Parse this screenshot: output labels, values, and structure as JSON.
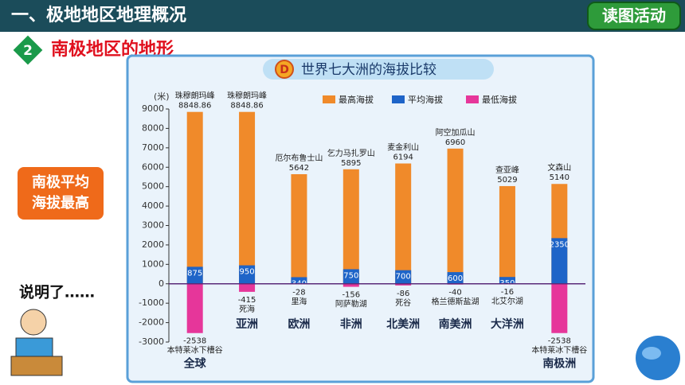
{
  "header": {
    "title": "一、极地地区地理概况",
    "button": "读图活动"
  },
  "section": {
    "number": "2",
    "title": "南极地区的地形"
  },
  "note": [
    "南极平均",
    "海拔最高"
  ],
  "caption": "说明了……",
  "chart_data": {
    "type": "bar",
    "badge": "D",
    "title": "世界七大洲的海拔比较",
    "y_label": "(米)",
    "categories": [
      "全球",
      "亚洲",
      "欧洲",
      "非洲",
      "北美洲",
      "南美洲",
      "大洋洲",
      "南极洲"
    ],
    "peak_names": [
      "珠穆朗玛峰",
      "珠穆朗玛峰",
      "厄尔布鲁士山",
      "乞力马扎罗山",
      "麦金利山",
      "阿空加瓜山",
      "查亚峰",
      "文森山"
    ],
    "low_names": [
      "本特莱冰下槽谷",
      "死海",
      "里海",
      "阿萨勒湖",
      "死谷",
      "格兰德斯盐湖",
      "北艾尔湖",
      "本特莱冰下槽谷"
    ],
    "series": [
      {
        "name": "最高海拔",
        "color": "#f08a2a",
        "values": [
          8848.86,
          8848.86,
          5642,
          5895,
          6194,
          6960,
          5029,
          5140
        ]
      },
      {
        "name": "平均海拔",
        "color": "#1e64c8",
        "values": [
          875,
          950,
          340,
          750,
          700,
          600,
          350,
          2350
        ]
      },
      {
        "name": "最低海拔",
        "color": "#e6369a",
        "values": [
          -2538,
          -415,
          -28,
          -156,
          -86,
          -40,
          -16,
          -2538
        ]
      }
    ],
    "ylim": [
      -3000,
      9000
    ],
    "yticks": [
      -3000,
      -2000,
      -1000,
      0,
      1000,
      2000,
      3000,
      4000,
      5000,
      6000,
      7000,
      8000,
      9000
    ],
    "legend": "top"
  }
}
